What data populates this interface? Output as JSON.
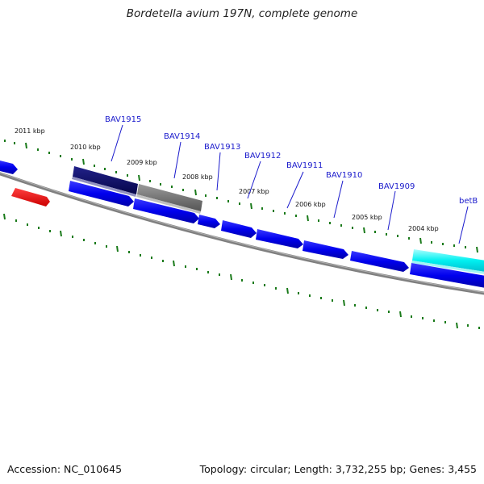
{
  "title": "Bordetella avium 197N, complete genome",
  "footer": {
    "accession": "Accession: NC_010645",
    "summary": "Topology: circular; Length: 3,732,255 bp; Genes: 3,455"
  },
  "colors": {
    "background": "#ffffff",
    "backbone": "#808080",
    "tick": "#1a7a1a",
    "gene_forward": "#0000ee",
    "gene_label": "#1a1acc",
    "gene_dark": "#0a0a6e",
    "gene_gray": "#6e6e6e",
    "gene_cyan": "#00e5ee",
    "gene_red": "#ee0000"
  },
  "kbp_labels": [
    "2011 kbp",
    "2010 kbp",
    "2009 kbp",
    "2008 kbp",
    "2007 kbp",
    "2006 kbp",
    "2005 kbp",
    "2004 kbp"
  ],
  "gene_labels": [
    "BAV1915",
    "BAV1914",
    "BAV1913",
    "BAV1912",
    "BAV1911",
    "BAV1910",
    "BAV1909",
    "betB"
  ]
}
